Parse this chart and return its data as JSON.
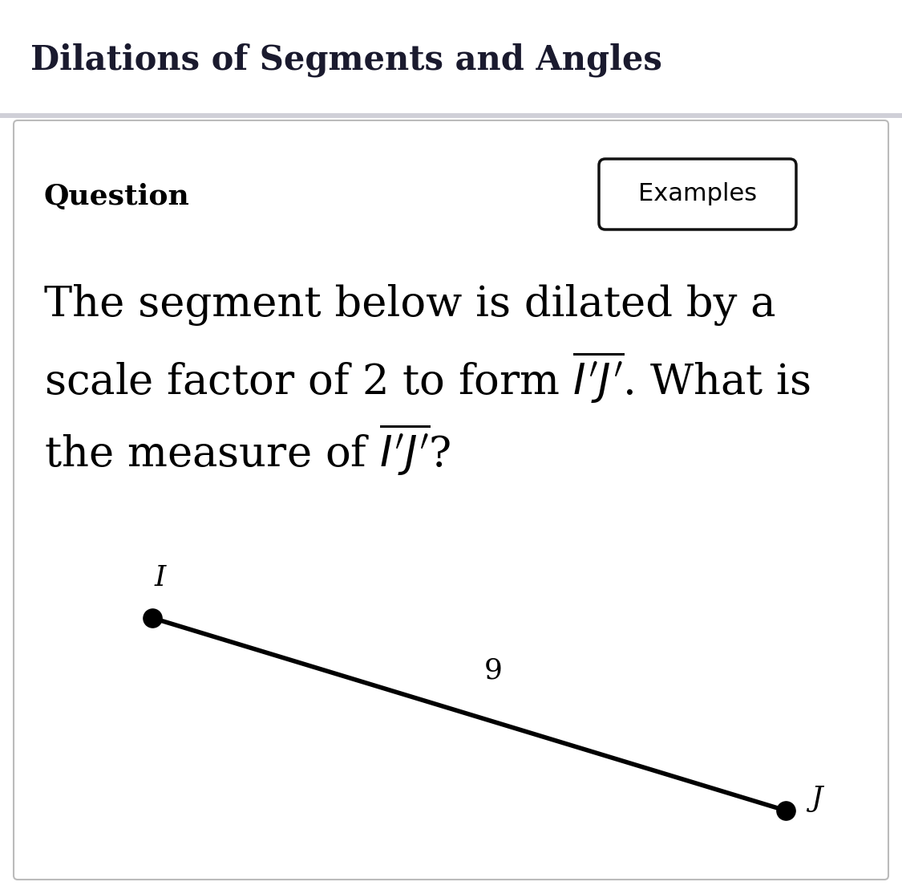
{
  "title": "Dilations of Segments and Angles",
  "title_color": "#1a1a2e",
  "title_fontsize": 30,
  "title_fontweight": "bold",
  "background_color": "#ffffff",
  "separator_color": "#d0d0d8",
  "panel_bg": "#ffffff",
  "panel_border_color": "#bbbbbb",
  "question_label": "Question",
  "question_label_fontsize": 26,
  "question_label_fontweight": "bold",
  "examples_button_text": "Examples",
  "examples_button_fontsize": 22,
  "body_text_line1": "The segment below is dilated by a",
  "body_fontsize": 38,
  "segment_label_I": "I",
  "segment_label_J": "J",
  "segment_length_label": "9",
  "Ix": 0.195,
  "Iy": 0.285,
  "Jx": 0.87,
  "Jy": 0.07,
  "segment_color": "#000000",
  "point_color": "#000000",
  "point_size": 140,
  "line_width": 3.0,
  "label_fontsize": 22
}
